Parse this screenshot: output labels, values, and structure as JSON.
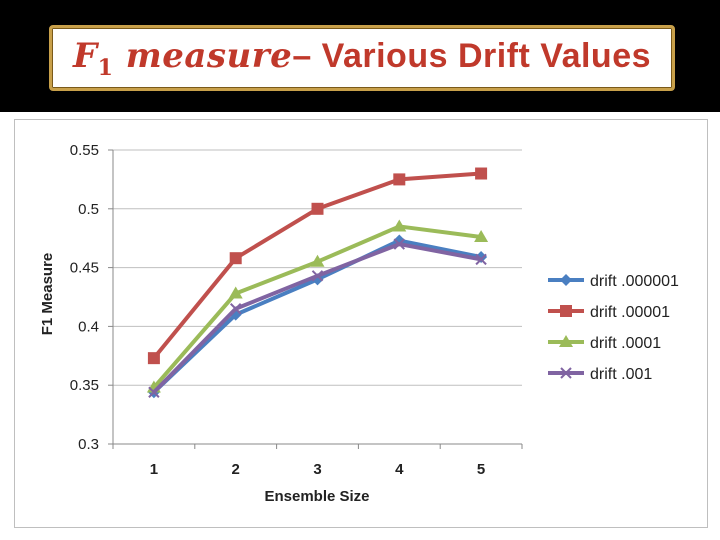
{
  "title": {
    "math_base": "F",
    "math_sub": "1",
    "math_word": " measure",
    "rest": "– Various Drift Values"
  },
  "colors": {
    "title": "#c0392b",
    "border": "#c8a04a",
    "background": "#000000"
  },
  "chart_data": {
    "type": "line",
    "title": "",
    "xlabel": "Ensemble Size",
    "ylabel": "F1 Measure",
    "categories": [
      "1",
      "2",
      "3",
      "4",
      "5"
    ],
    "ylim": [
      0.3,
      0.55
    ],
    "yticks": [
      "0.3",
      "0.35",
      "0.4",
      "0.45",
      "0.5",
      "0.55"
    ],
    "grid": true,
    "legend_position": "right",
    "series": [
      {
        "name": "drift .000001",
        "color": "#4a7fc1",
        "marker": "diamond",
        "values": [
          0.344,
          0.41,
          0.44,
          0.473,
          0.459
        ]
      },
      {
        "name": "drift .00001",
        "color": "#c0504d",
        "marker": "square",
        "values": [
          0.373,
          0.458,
          0.5,
          0.525,
          0.53
        ]
      },
      {
        "name": "drift .0001",
        "color": "#9bbb59",
        "marker": "triangle",
        "values": [
          0.348,
          0.428,
          0.455,
          0.485,
          0.476
        ]
      },
      {
        "name": "drift .001",
        "color": "#8064a2",
        "marker": "x",
        "values": [
          0.344,
          0.415,
          0.443,
          0.47,
          0.457
        ]
      }
    ]
  }
}
